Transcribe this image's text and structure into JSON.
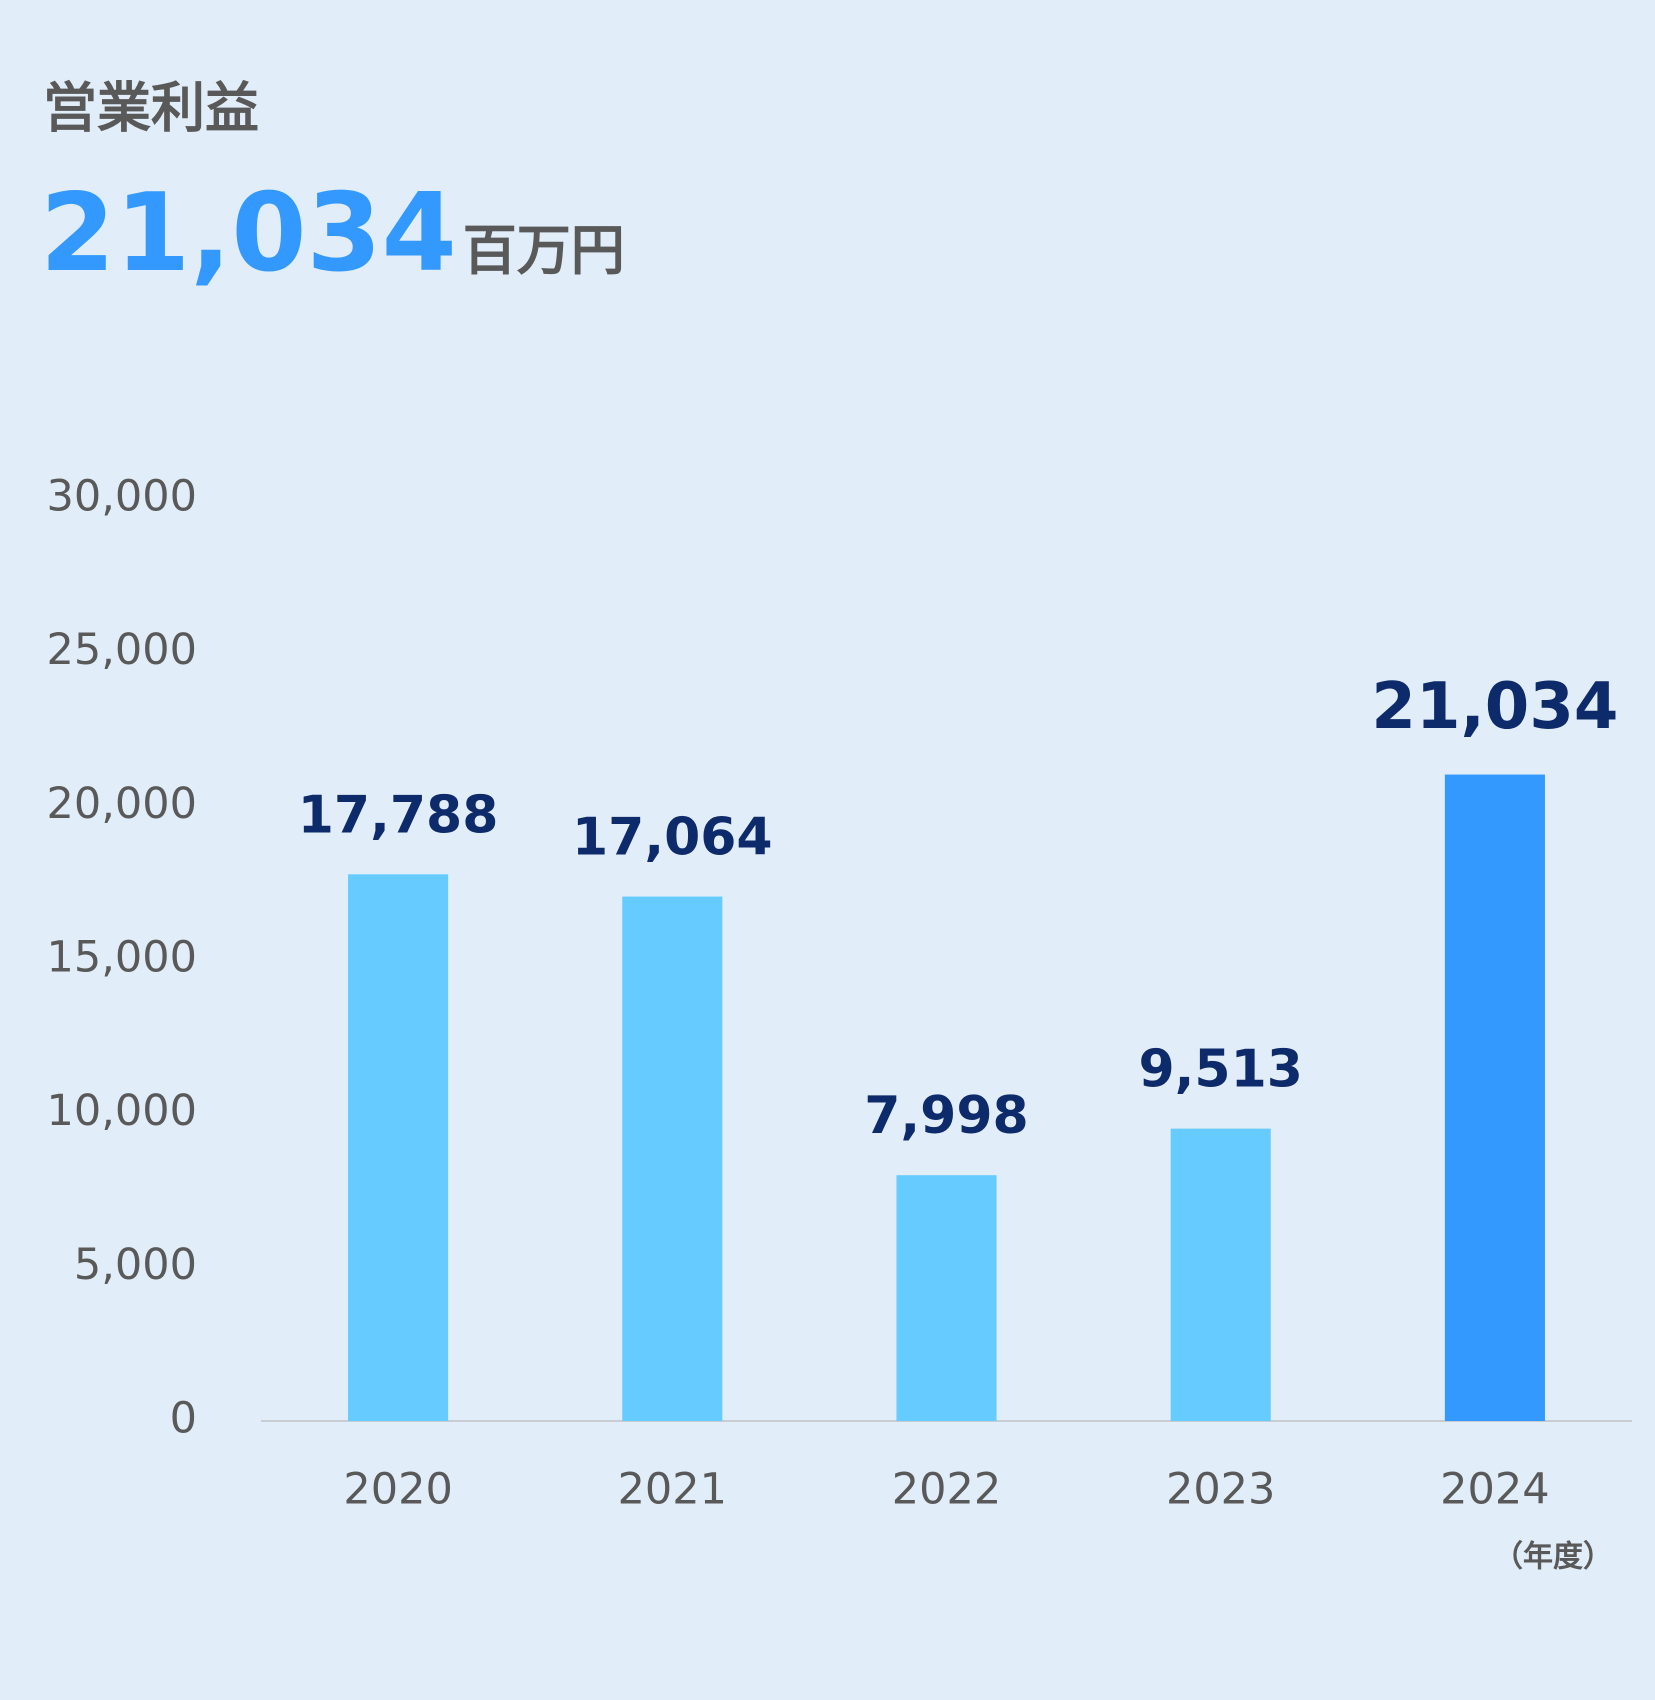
{
  "chart_data": {
    "type": "bar",
    "title": "営業利益",
    "headline": {
      "value": "21,034",
      "unit": "百万円"
    },
    "categories": [
      "2020",
      "2021",
      "2022",
      "2023",
      "2024"
    ],
    "values": [
      17788,
      17064,
      7998,
      9513,
      21034
    ],
    "value_labels": [
      "17,788",
      "17,064",
      "7,998",
      "9,513",
      "21,034"
    ],
    "colors": [
      "#66ccff",
      "#66ccff",
      "#66ccff",
      "#66ccff",
      "#3399ff"
    ],
    "x_unit": "（年度）",
    "ylim": [
      0,
      30000
    ],
    "yticks": [
      0,
      {
        "value": 5000,
        "label": "5,000"
      },
      {
        "value": 10000,
        "label": "10,000"
      },
      {
        "value": 15000,
        "label": "15,000"
      },
      {
        "value": 20000,
        "label": "20,000"
      },
      {
        "value": 25000,
        "label": "25,000"
      },
      {
        "value": 30000,
        "label": "30,000"
      }
    ],
    "grid": false
  }
}
